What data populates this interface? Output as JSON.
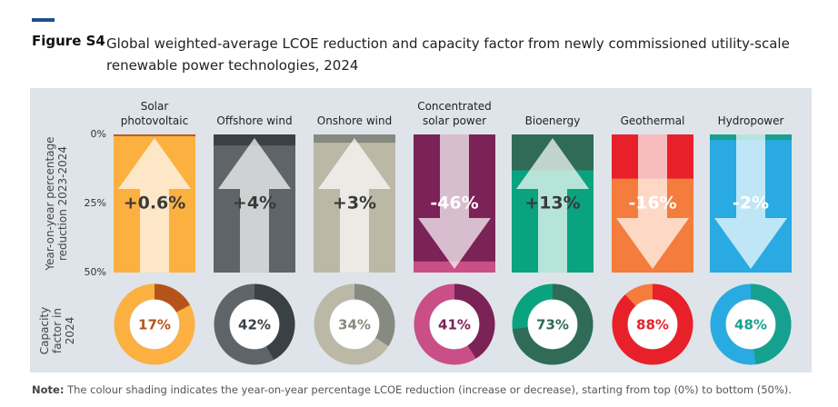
{
  "figure_label": "Figure S4",
  "chart_data": {
    "type": "bar",
    "title": "Global weighted-average LCOE reduction and capacity factor from newly commissioned utility-scale renewable power technologies, 2024",
    "ylabel": "Year-on-year percentage reduction 2023-2024",
    "y2label": "Capacity factor in 2024",
    "categories": [
      "Solar photovoltaic",
      "Offshore wind",
      "Onshore wind",
      "Concentrated solar power",
      "Bioenergy",
      "Geothermal",
      "Hydropower"
    ],
    "values": [
      0.6,
      4,
      3,
      -46,
      13,
      -16,
      -2
    ],
    "value_labels": [
      "+0.6%",
      "+4%",
      "+3%",
      "-46%",
      "+13%",
      "-16%",
      "-2%"
    ],
    "capacity_factor": [
      17,
      42,
      34,
      41,
      73,
      88,
      48
    ],
    "capacity_factor_labels": [
      "17%",
      "42%",
      "34%",
      "41%",
      "73%",
      "88%",
      "48%"
    ],
    "colors": [
      "#fbb040",
      "#5f6468",
      "#bbb8a5",
      "#c94f86",
      "#0aa37f",
      "#f47c3c",
      "#2aaae2"
    ],
    "dark_colors": [
      "#b5541a",
      "#3a4145",
      "#878a80",
      "#7b2257",
      "#2f6b57",
      "#e8202a",
      "#16a08f"
    ],
    "ylim": [
      0,
      50
    ],
    "yticks": [
      {
        "value": 0,
        "label": "0%"
      },
      {
        "value": 25,
        "label": "25%"
      },
      {
        "value": 50,
        "label": "50%"
      }
    ]
  },
  "note_label": "Note:",
  "note": "The colour shading indicates the year-on-year percentage LCOE reduction (increase or decrease), starting from top (0%) to bottom (50%)."
}
